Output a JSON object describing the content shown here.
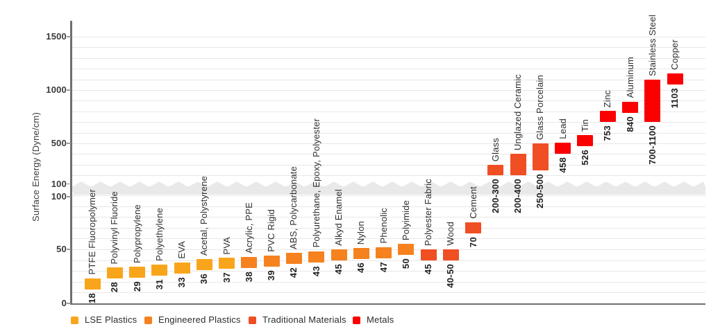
{
  "chart_data": {
    "type": "bar",
    "subtype": "floating-range-bars",
    "ylabel": "Surface Energy (Dyne/cm)",
    "grid": true,
    "legend_position": "bottom",
    "y_axis": {
      "axis_break": true,
      "lower_range": [
        0,
        100
      ],
      "lower_ticks": [
        0,
        50,
        100
      ],
      "lower_minor_step": 10,
      "upper_range": [
        100,
        1500
      ],
      "upper_ticks": [
        100,
        500,
        1000,
        1500
      ],
      "upper_minor_step": 100
    },
    "categories": [
      {
        "key": "lse",
        "label": "LSE Plastics",
        "color": "#F9A51B"
      },
      {
        "key": "engineered",
        "label": "Engineered Plastics",
        "color": "#F5821F"
      },
      {
        "key": "traditional",
        "label": "Traditional Materials",
        "color": "#F04E23"
      },
      {
        "key": "metals",
        "label": "Metals",
        "color": "#FA0000"
      }
    ],
    "materials": [
      {
        "name": "PTFE Fluoropolymer",
        "label": "18",
        "value": 18,
        "category": "lse"
      },
      {
        "name": "Polyvinyl Fluoride",
        "label": "28",
        "value": 28,
        "category": "lse"
      },
      {
        "name": "Polypropylene",
        "label": "29",
        "value": 29,
        "category": "lse"
      },
      {
        "name": "Polyethylene",
        "label": "31",
        "value": 31,
        "category": "lse"
      },
      {
        "name": "EVA",
        "label": "33",
        "value": 33,
        "category": "lse"
      },
      {
        "name": "Acetal, Polystyrene",
        "label": "36",
        "value": 36,
        "category": "lse"
      },
      {
        "name": "PVA",
        "label": "37",
        "value": 37,
        "category": "lse"
      },
      {
        "name": "Acrylic, PPE",
        "label": "38",
        "value": 38,
        "category": "engineered"
      },
      {
        "name": "PVC Rigid",
        "label": "39",
        "value": 39,
        "category": "engineered"
      },
      {
        "name": "ABS, Polycarbonate",
        "label": "42",
        "value": 42,
        "category": "engineered"
      },
      {
        "name": "Polyurethane, Epoxy, Polyester",
        "label": "43",
        "value": 43,
        "category": "engineered"
      },
      {
        "name": "Alkyd Enamel",
        "label": "45",
        "value": 45,
        "category": "engineered"
      },
      {
        "name": "Nylon",
        "label": "46",
        "value": 46,
        "category": "engineered"
      },
      {
        "name": "Phenolic",
        "label": "47",
        "value": 47,
        "category": "engineered"
      },
      {
        "name": "Polyimide",
        "label": "50",
        "value": 50,
        "category": "engineered"
      },
      {
        "name": "Polyester Fabric",
        "label": "45",
        "value": 45,
        "category": "traditional"
      },
      {
        "name": "Wood",
        "label": "40-50",
        "range": [
          40,
          50
        ],
        "category": "traditional"
      },
      {
        "name": "Cement",
        "label": "70",
        "value": 70,
        "category": "traditional"
      },
      {
        "name": "Glass",
        "label": "200-300",
        "range": [
          200,
          300
        ],
        "category": "traditional"
      },
      {
        "name": "Unglazed Ceramic",
        "label": "200-400",
        "range": [
          200,
          400
        ],
        "category": "traditional"
      },
      {
        "name": "Glass Porcelain",
        "label": "250-500",
        "range": [
          250,
          500
        ],
        "category": "traditional"
      },
      {
        "name": "Lead",
        "label": "458",
        "value": 458,
        "category": "metals"
      },
      {
        "name": "Tin",
        "label": "526",
        "value": 526,
        "category": "metals"
      },
      {
        "name": "Zinc",
        "label": "753",
        "value": 753,
        "category": "metals"
      },
      {
        "name": "Aluminum",
        "label": "840",
        "value": 840,
        "category": "metals"
      },
      {
        "name": "Stainless Steel",
        "label": "700-1100",
        "range": [
          700,
          1100
        ],
        "category": "metals"
      },
      {
        "name": "Copper",
        "label": "1103",
        "value": 1103,
        "category": "metals"
      }
    ]
  }
}
